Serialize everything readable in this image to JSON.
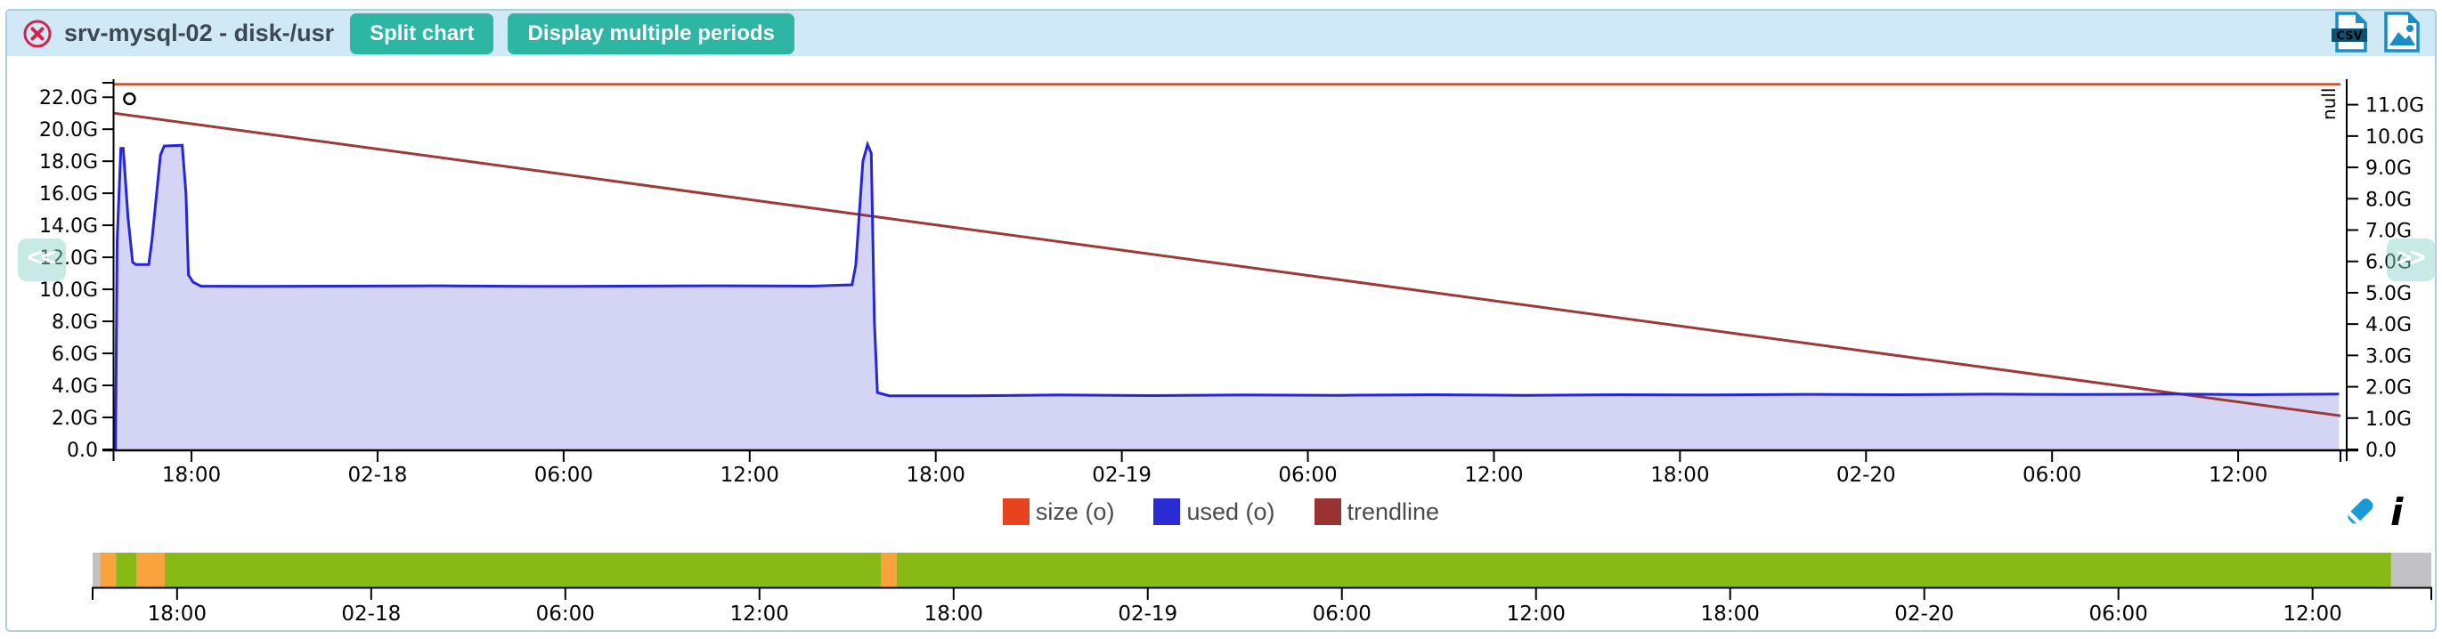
{
  "header": {
    "title": "srv-mysql-02 - disk-/usr",
    "buttons": {
      "split_chart": "Split chart",
      "multiple_periods": "Display multiple periods"
    },
    "csv_label": "CSV"
  },
  "nav": {
    "prev_label": "<<",
    "next_label": ">>"
  },
  "legend": {
    "items": [
      {
        "label": "size (o)",
        "color": "#e8431f"
      },
      {
        "label": "used (o)",
        "color": "#2b2bd4"
      },
      {
        "label": "trendline",
        "color": "#993333"
      }
    ]
  },
  "chart_data": {
    "type": "area",
    "title": "",
    "xlabel": "",
    "ylabel": "",
    "x_unit": "hours since 02-17 00:00",
    "x_range": [
      15.5,
      87.3
    ],
    "x_ticks": [
      {
        "t": 18,
        "label": "18:00"
      },
      {
        "t": 24,
        "label": "02-18"
      },
      {
        "t": 30,
        "label": "06:00"
      },
      {
        "t": 36,
        "label": "12:00"
      },
      {
        "t": 42,
        "label": "18:00"
      },
      {
        "t": 48,
        "label": "02-19"
      },
      {
        "t": 54,
        "label": "06:00"
      },
      {
        "t": 60,
        "label": "12:00"
      },
      {
        "t": 66,
        "label": "18:00"
      },
      {
        "t": 72,
        "label": "02-20"
      },
      {
        "t": 78,
        "label": "06:00"
      },
      {
        "t": 84,
        "label": "12:00"
      }
    ],
    "left_axis": {
      "max": 22.9,
      "tick_step": 2,
      "tick_labels": [
        "0.0",
        "2.0G",
        "4.0G",
        "6.0G",
        "8.0G",
        "10.0G",
        "12.0G",
        "14.0G",
        "16.0G",
        "18.0G",
        "20.0G",
        "22.0G"
      ]
    },
    "right_axis": {
      "max": 11.7,
      "tick_step": 1,
      "top_label": "null",
      "tick_labels": [
        "0.0",
        "1.0G",
        "2.0G",
        "3.0G",
        "4.0G",
        "5.0G",
        "6.0G",
        "7.0G",
        "8.0G",
        "9.0G",
        "10.0G",
        "11.0G"
      ]
    },
    "series": [
      {
        "name": "size (o)",
        "type": "line",
        "color": "#ee4a1f",
        "width": 3,
        "points": [
          [
            15.5,
            22.8
          ],
          [
            87.3,
            22.8
          ]
        ]
      },
      {
        "name": "trendline",
        "type": "line",
        "color": "#9c3939",
        "width": 3,
        "points": [
          [
            15.5,
            21.0
          ],
          [
            87.3,
            2.1
          ]
        ]
      },
      {
        "name": "used (o)",
        "type": "area",
        "color": "#2626d8",
        "fill": "#d4d4f4",
        "width": 3,
        "points": [
          [
            15.55,
            0.0
          ],
          [
            15.6,
            13.0
          ],
          [
            15.72,
            18.8
          ],
          [
            15.8,
            18.8
          ],
          [
            15.95,
            14.5
          ],
          [
            16.1,
            11.7
          ],
          [
            16.2,
            11.55
          ],
          [
            16.62,
            11.55
          ],
          [
            16.72,
            13.0
          ],
          [
            17.0,
            18.4
          ],
          [
            17.12,
            18.95
          ],
          [
            17.7,
            19.0
          ],
          [
            17.82,
            16.0
          ],
          [
            17.9,
            10.9
          ],
          [
            18.05,
            10.45
          ],
          [
            18.3,
            10.2
          ],
          [
            20,
            10.18
          ],
          [
            23,
            10.2
          ],
          [
            26,
            10.22
          ],
          [
            29,
            10.18
          ],
          [
            32,
            10.2
          ],
          [
            35,
            10.22
          ],
          [
            38,
            10.2
          ],
          [
            39.3,
            10.28
          ],
          [
            39.42,
            11.5
          ],
          [
            39.65,
            18.0
          ],
          [
            39.8,
            19.05
          ],
          [
            39.92,
            18.5
          ],
          [
            40.02,
            8.0
          ],
          [
            40.12,
            3.55
          ],
          [
            40.5,
            3.35
          ],
          [
            43,
            3.35
          ],
          [
            46,
            3.4
          ],
          [
            49,
            3.36
          ],
          [
            52,
            3.4
          ],
          [
            55,
            3.38
          ],
          [
            58,
            3.42
          ],
          [
            61,
            3.38
          ],
          [
            64,
            3.42
          ],
          [
            67,
            3.4
          ],
          [
            70,
            3.44
          ],
          [
            73,
            3.42
          ],
          [
            76,
            3.45
          ],
          [
            79,
            3.43
          ],
          [
            82,
            3.46
          ],
          [
            84.5,
            3.42
          ],
          [
            87.25,
            3.46
          ]
        ]
      }
    ],
    "marker": {
      "t": 16.0,
      "value": 21.9,
      "shape": "circle"
    }
  },
  "timeline": {
    "x_range": [
      15.39,
      87.67
    ],
    "ticks": [
      {
        "t": 18,
        "label": "18:00"
      },
      {
        "t": 24,
        "label": "02-18"
      },
      {
        "t": 30,
        "label": "06:00"
      },
      {
        "t": 36,
        "label": "12:00"
      },
      {
        "t": 42,
        "label": "18:00"
      },
      {
        "t": 48,
        "label": "02-19"
      },
      {
        "t": 54,
        "label": "06:00"
      },
      {
        "t": 60,
        "label": "12:00"
      },
      {
        "t": 66,
        "label": "18:00"
      },
      {
        "t": 72,
        "label": "02-20"
      },
      {
        "t": 78,
        "label": "06:00"
      },
      {
        "t": 84,
        "label": "12:00"
      }
    ],
    "segments": [
      {
        "status": "unknown",
        "color": "#c2c2c6",
        "from": 15.39,
        "to": 15.62
      },
      {
        "status": "warning",
        "color": "#f8a33d",
        "from": 15.62,
        "to": 16.11
      },
      {
        "status": "ok",
        "color": "#88b917",
        "from": 16.11,
        "to": 16.74
      },
      {
        "status": "warning",
        "color": "#f8a33d",
        "from": 16.74,
        "to": 17.62
      },
      {
        "status": "ok",
        "color": "#88b917",
        "from": 17.62,
        "to": 39.77
      },
      {
        "status": "warning",
        "color": "#f8a33d",
        "from": 39.77,
        "to": 40.24
      },
      {
        "status": "ok",
        "color": "#88b917",
        "from": 40.24,
        "to": 86.43
      },
      {
        "status": "unknown",
        "color": "#c2c2c6",
        "from": 86.43,
        "to": 87.67
      }
    ]
  }
}
